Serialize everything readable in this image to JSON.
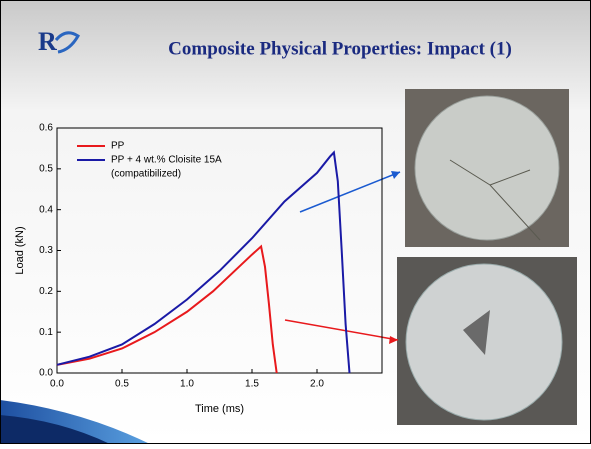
{
  "chart_data": {
    "type": "line",
    "title": "Composite Physical Properties: Impact (1)",
    "x_label": "Time (ms)",
    "y_label": "Load (kN)",
    "xlim": [
      0,
      2.5
    ],
    "ylim": [
      0,
      0.6
    ],
    "xticks": [
      {
        "value": 0,
        "label": "0.0"
      },
      0.5,
      {
        "value": 1,
        "label": "1.0"
      },
      1.5,
      {
        "value": 2,
        "label": "2.0"
      }
    ],
    "yticks": [
      {
        "value": 0,
        "label": "0.0"
      },
      0.1,
      0.2,
      0.3,
      0.4,
      0.5,
      0.6
    ],
    "legend": "upper left",
    "series": [
      {
        "name": "PP",
        "color": "#e8191c",
        "x": [
          0,
          0.25,
          0.5,
          0.75,
          1.0,
          1.2,
          1.4,
          1.5,
          1.57,
          1.6,
          1.63,
          1.66,
          1.69
        ],
        "values": [
          0.02,
          0.035,
          0.06,
          0.1,
          0.15,
          0.2,
          0.26,
          0.29,
          0.31,
          0.26,
          0.17,
          0.07,
          0
        ]
      },
      {
        "name": "PP + 4 wt.% Cloisite 15A",
        "color": "#1a1aa6",
        "x": [
          0,
          0.25,
          0.5,
          0.75,
          1.0,
          1.25,
          1.5,
          1.75,
          2.0,
          2.1,
          2.13,
          2.16,
          2.19,
          2.22,
          2.25
        ],
        "values": [
          0.02,
          0.04,
          0.07,
          0.12,
          0.18,
          0.25,
          0.33,
          0.42,
          0.49,
          0.53,
          0.54,
          0.47,
          0.3,
          0.12,
          0
        ]
      }
    ],
    "legend_note": "(compatibilized)"
  }
}
